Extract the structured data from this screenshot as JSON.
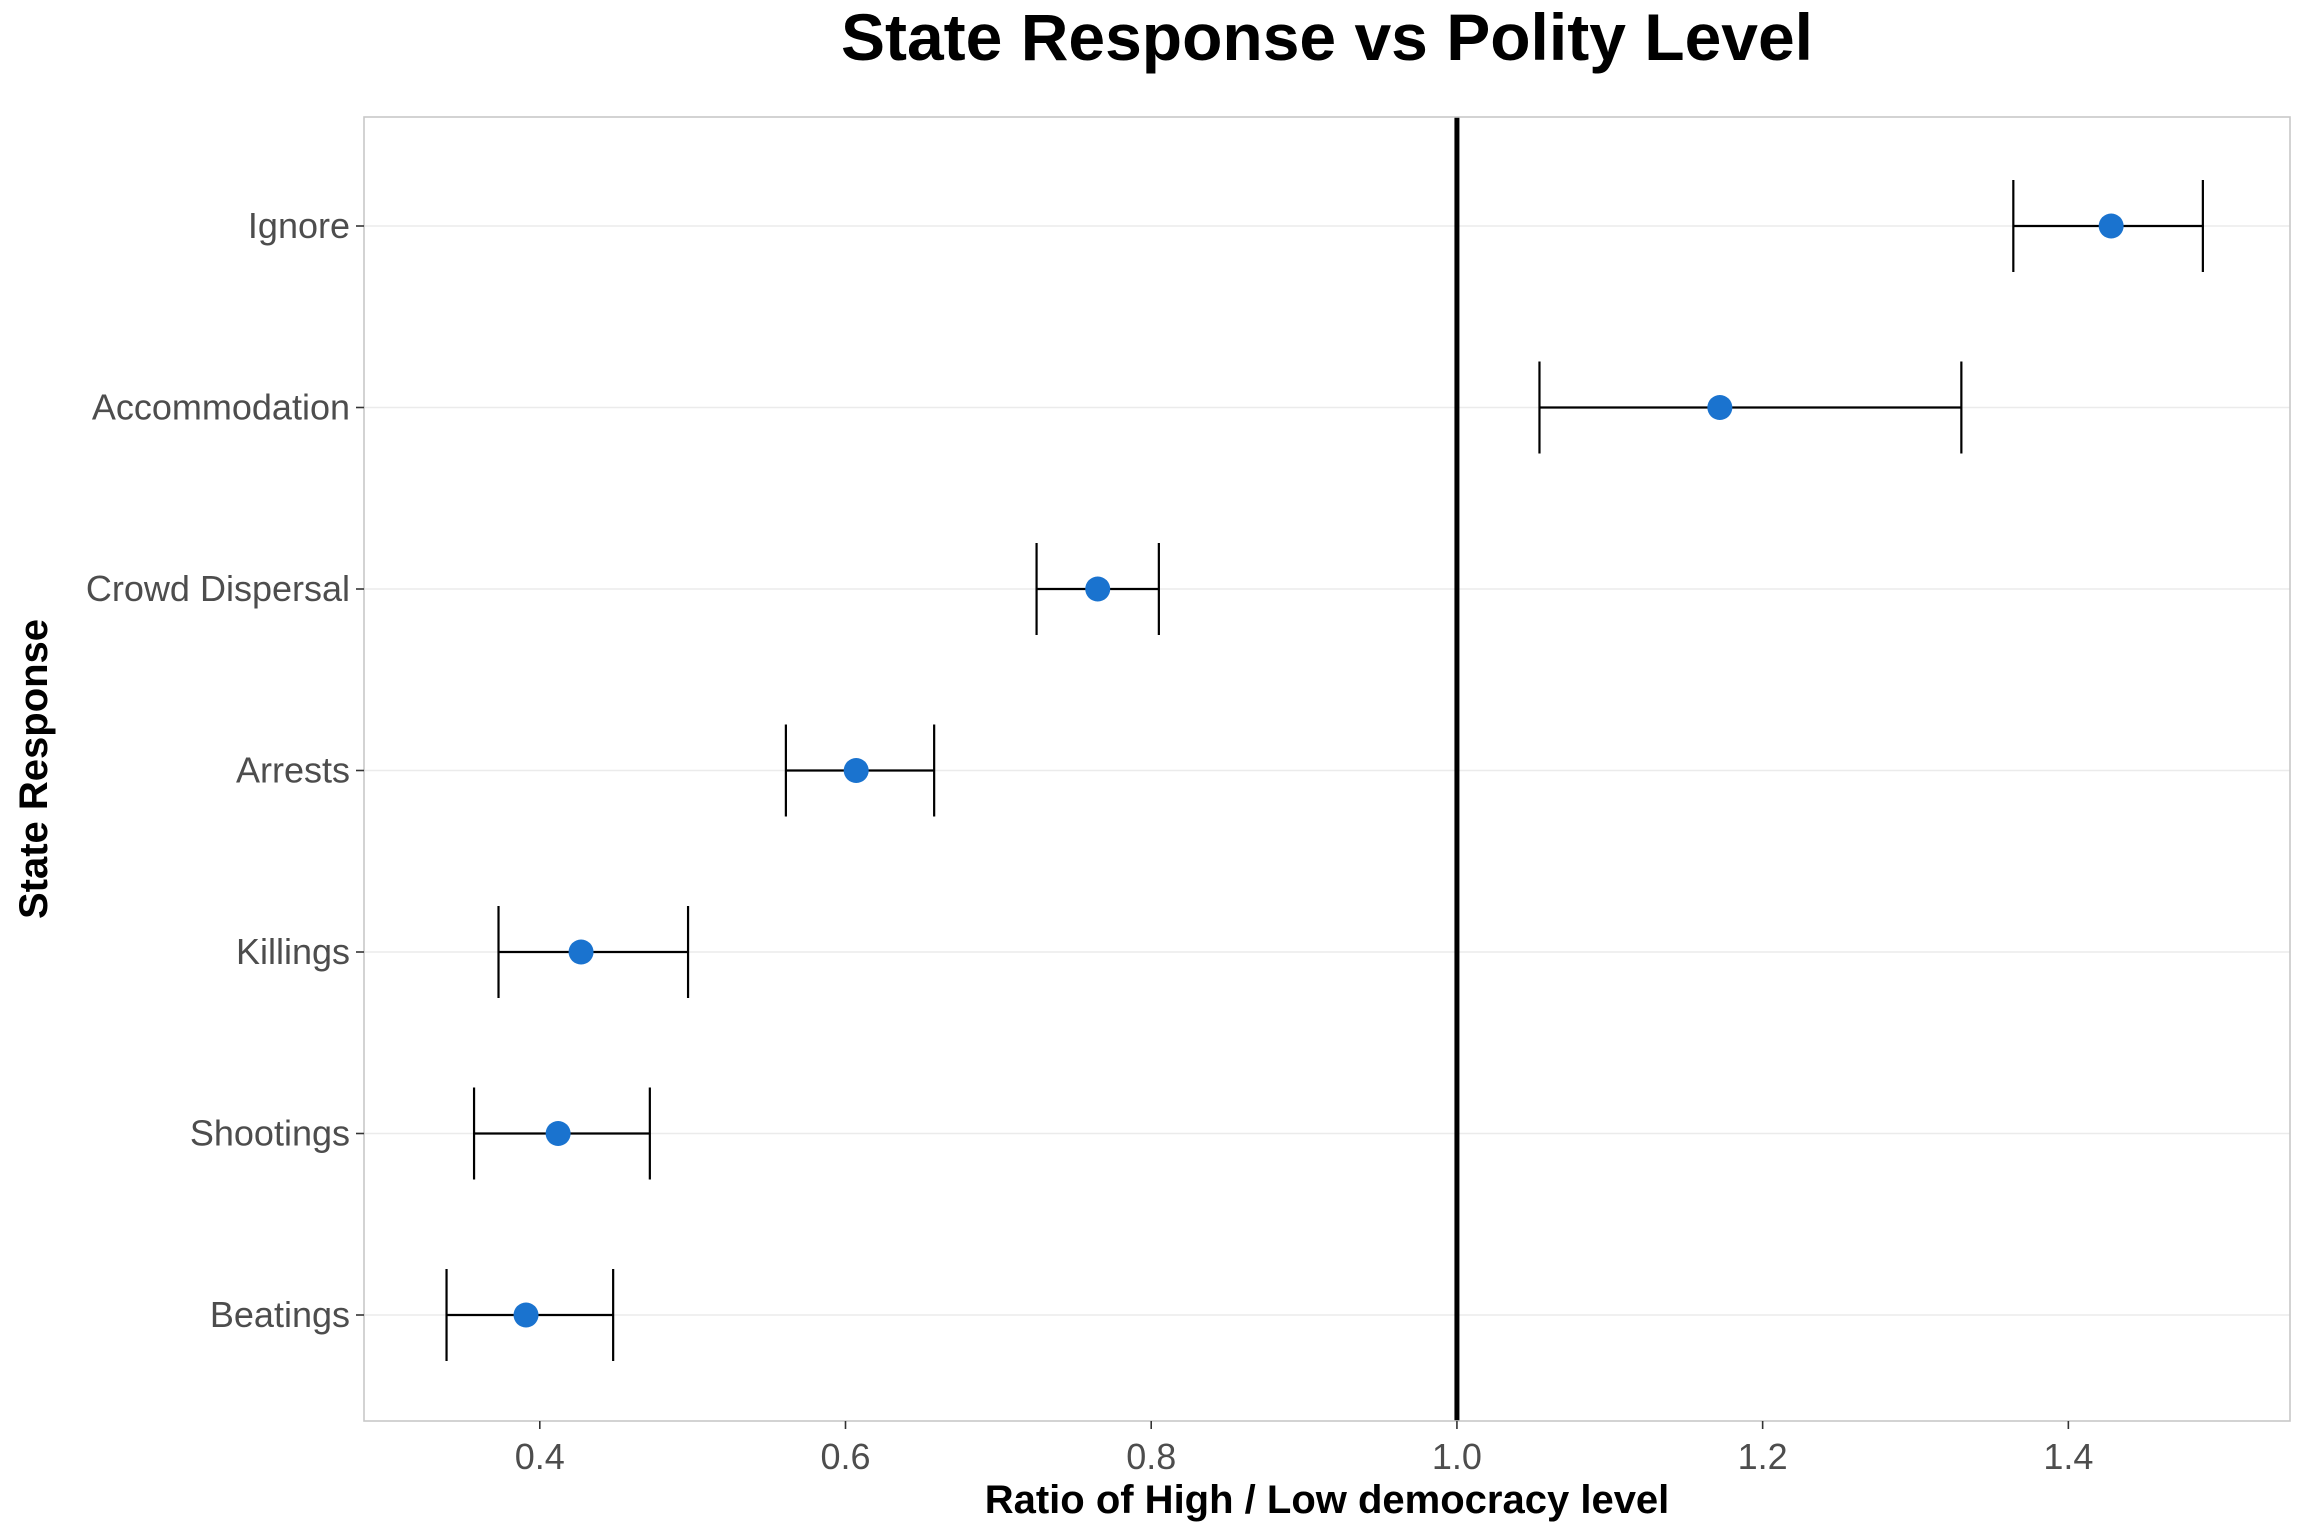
{
  "chart_data": {
    "type": "scatter",
    "title": "State Response vs Polity Level",
    "xlabel": "Ratio of High / Low democracy level",
    "ylabel": "State Response",
    "xlim": [
      0.285,
      1.545
    ],
    "xticks": [
      0.4,
      0.6,
      0.8,
      1.0,
      1.2,
      1.4
    ],
    "xtick_labels": [
      "0.4",
      "0.6",
      "0.8",
      "1.0",
      "1.2",
      "1.4"
    ],
    "reference_line_x": 1.0,
    "grid": "horizontal major only",
    "point_color": "#1a73cf",
    "categories": [
      "Ignore",
      "Accommodation",
      "Crowd Dispersal",
      "Arrests",
      "Killings",
      "Shootings",
      "Beatings"
    ],
    "points": [
      {
        "category": "Ignore",
        "estimate": 1.428,
        "lower": 1.364,
        "upper": 1.488
      },
      {
        "category": "Accommodation",
        "estimate": 1.172,
        "lower": 1.054,
        "upper": 1.33
      },
      {
        "category": "Crowd Dispersal",
        "estimate": 0.765,
        "lower": 0.725,
        "upper": 0.805
      },
      {
        "category": "Arrests",
        "estimate": 0.607,
        "lower": 0.561,
        "upper": 0.658
      },
      {
        "category": "Killings",
        "estimate": 0.427,
        "lower": 0.373,
        "upper": 0.497
      },
      {
        "category": "Shootings",
        "estimate": 0.412,
        "lower": 0.357,
        "upper": 0.472
      },
      {
        "category": "Beatings",
        "estimate": 0.391,
        "lower": 0.339,
        "upper": 0.448
      }
    ]
  }
}
